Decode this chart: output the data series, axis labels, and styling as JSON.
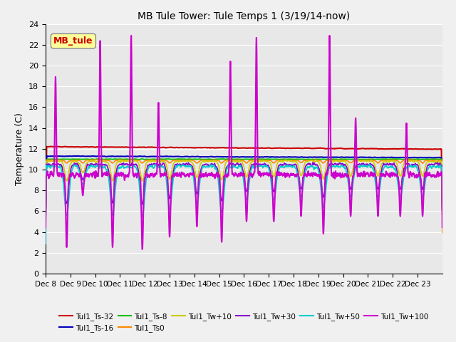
{
  "title": "MB Tule Tower: Tule Temps 1 (3/19/14-now)",
  "ylabel": "Temperature (C)",
  "ylim": [
    0,
    24
  ],
  "yticks": [
    0,
    2,
    4,
    6,
    8,
    10,
    12,
    14,
    16,
    18,
    20,
    22,
    24
  ],
  "x_tick_labels": [
    "Dec 8",
    "Dec 9",
    "Dec 10",
    "Dec 11",
    "Dec 12",
    "Dec 13",
    "Dec 14",
    "Dec 15",
    "Dec 16",
    "Dec 17",
    "Dec 18",
    "Dec 19",
    "Dec 20",
    "Dec 21",
    "Dec 22",
    "Dec 23"
  ],
  "bg_color": "#e8e8e8",
  "grid_color": "#ffffff",
  "annotation_label": "MB_tule",
  "annotation_color": "#cc0000",
  "annotation_bg": "#ffff99",
  "series": [
    {
      "name": "Tul1_Ts-32",
      "color": "#cc0000",
      "lw": 1.5
    },
    {
      "name": "Tul1_Ts-16",
      "color": "#0000bb",
      "lw": 1.5
    },
    {
      "name": "Tul1_Ts-8",
      "color": "#00bb00",
      "lw": 1.2
    },
    {
      "name": "Tul1_Ts0",
      "color": "#ff8800",
      "lw": 1.2
    },
    {
      "name": "Tul1_Tw+10",
      "color": "#cccc00",
      "lw": 1.2
    },
    {
      "name": "Tul1_Tw+30",
      "color": "#8800cc",
      "lw": 1.2
    },
    {
      "name": "Tul1_Tw+50",
      "color": "#00cccc",
      "lw": 1.2
    },
    {
      "name": "Tul1_Tw+100",
      "color": "#cc00cc",
      "lw": 1.5
    }
  ],
  "legend_ncol": 6
}
